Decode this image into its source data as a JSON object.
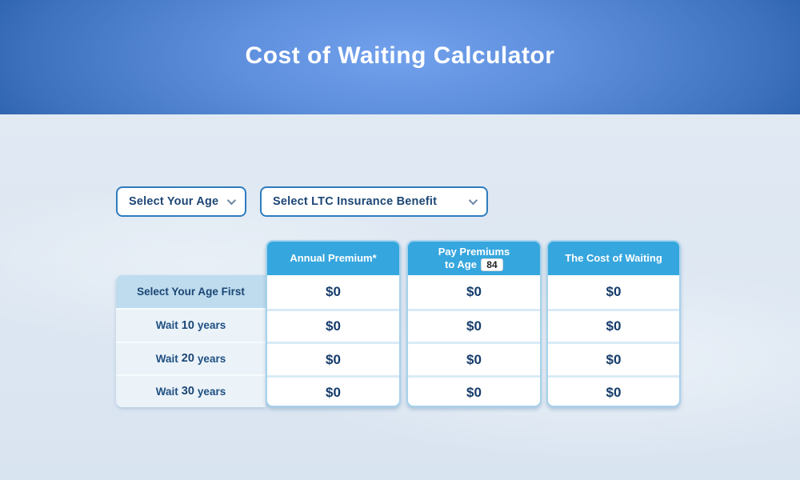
{
  "colors": {
    "banner_center": "#72a1ec",
    "banner_edge": "#174a92",
    "table_header_blue": "#36a6de",
    "label_highlight_bg": "#bedcee",
    "label_row_bg": "#ebf3f9",
    "navy_text": "#1c4674",
    "dropdown_border": "#2e7cbf",
    "card_border": "#a6d2ec"
  },
  "header": {
    "title": "Cost of Waiting Calculator"
  },
  "controls": {
    "age_select": {
      "value": "Select Your Age"
    },
    "benefit_select": {
      "value": "Select LTC Insurance Benefit"
    }
  },
  "table": {
    "columns": [
      {
        "label": "Annual Premium*"
      },
      {
        "label_line1": "Pay Premiums",
        "label_line2": "to Age",
        "age_value": "84"
      },
      {
        "label": "The Cost of Waiting"
      }
    ],
    "rows": [
      {
        "label": "Select Your Age First",
        "values": [
          "$0",
          "$0",
          "$0"
        ]
      },
      {
        "label_pre": "Wait",
        "label_num": "10",
        "label_post": "years",
        "values": [
          "$0",
          "$0",
          "$0"
        ]
      },
      {
        "label_pre": "Wait",
        "label_num": "20",
        "label_post": "years",
        "values": [
          "$0",
          "$0",
          "$0"
        ]
      },
      {
        "label_pre": "Wait",
        "label_num": "30",
        "label_post": "years",
        "values": [
          "$0",
          "$0",
          "$0"
        ]
      }
    ]
  }
}
